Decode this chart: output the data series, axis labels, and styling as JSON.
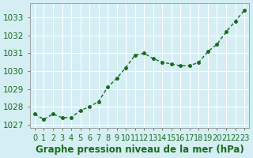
{
  "x": [
    0,
    1,
    2,
    3,
    4,
    5,
    6,
    7,
    8,
    9,
    10,
    11,
    12,
    13,
    14,
    15,
    16,
    17,
    18,
    19,
    20,
    21,
    22,
    23
  ],
  "y": [
    1027.6,
    1027.3,
    1027.6,
    1027.4,
    1027.4,
    1027.8,
    1028.0,
    1028.3,
    1029.1,
    1029.6,
    1030.2,
    1030.9,
    1031.0,
    1030.7,
    1030.5,
    1030.4,
    1030.3,
    1030.3,
    1030.5,
    1031.1,
    1031.5,
    1032.2,
    1032.8,
    1033.4
  ],
  "line_color": "#1a6b1a",
  "marker_color": "#1a6b1a",
  "bg_color": "#d4eef4",
  "grid_color": "#ffffff",
  "ylabel_ticks": [
    1027,
    1028,
    1029,
    1030,
    1031,
    1032,
    1033
  ],
  "xlabel": "Graphe pression niveau de la mer (hPa)",
  "xlim": [
    -0.5,
    23.5
  ],
  "ylim": [
    1026.8,
    1033.8
  ],
  "title_fontsize": 9,
  "tick_fontsize": 7.5,
  "xlabel_fontsize": 8.5
}
